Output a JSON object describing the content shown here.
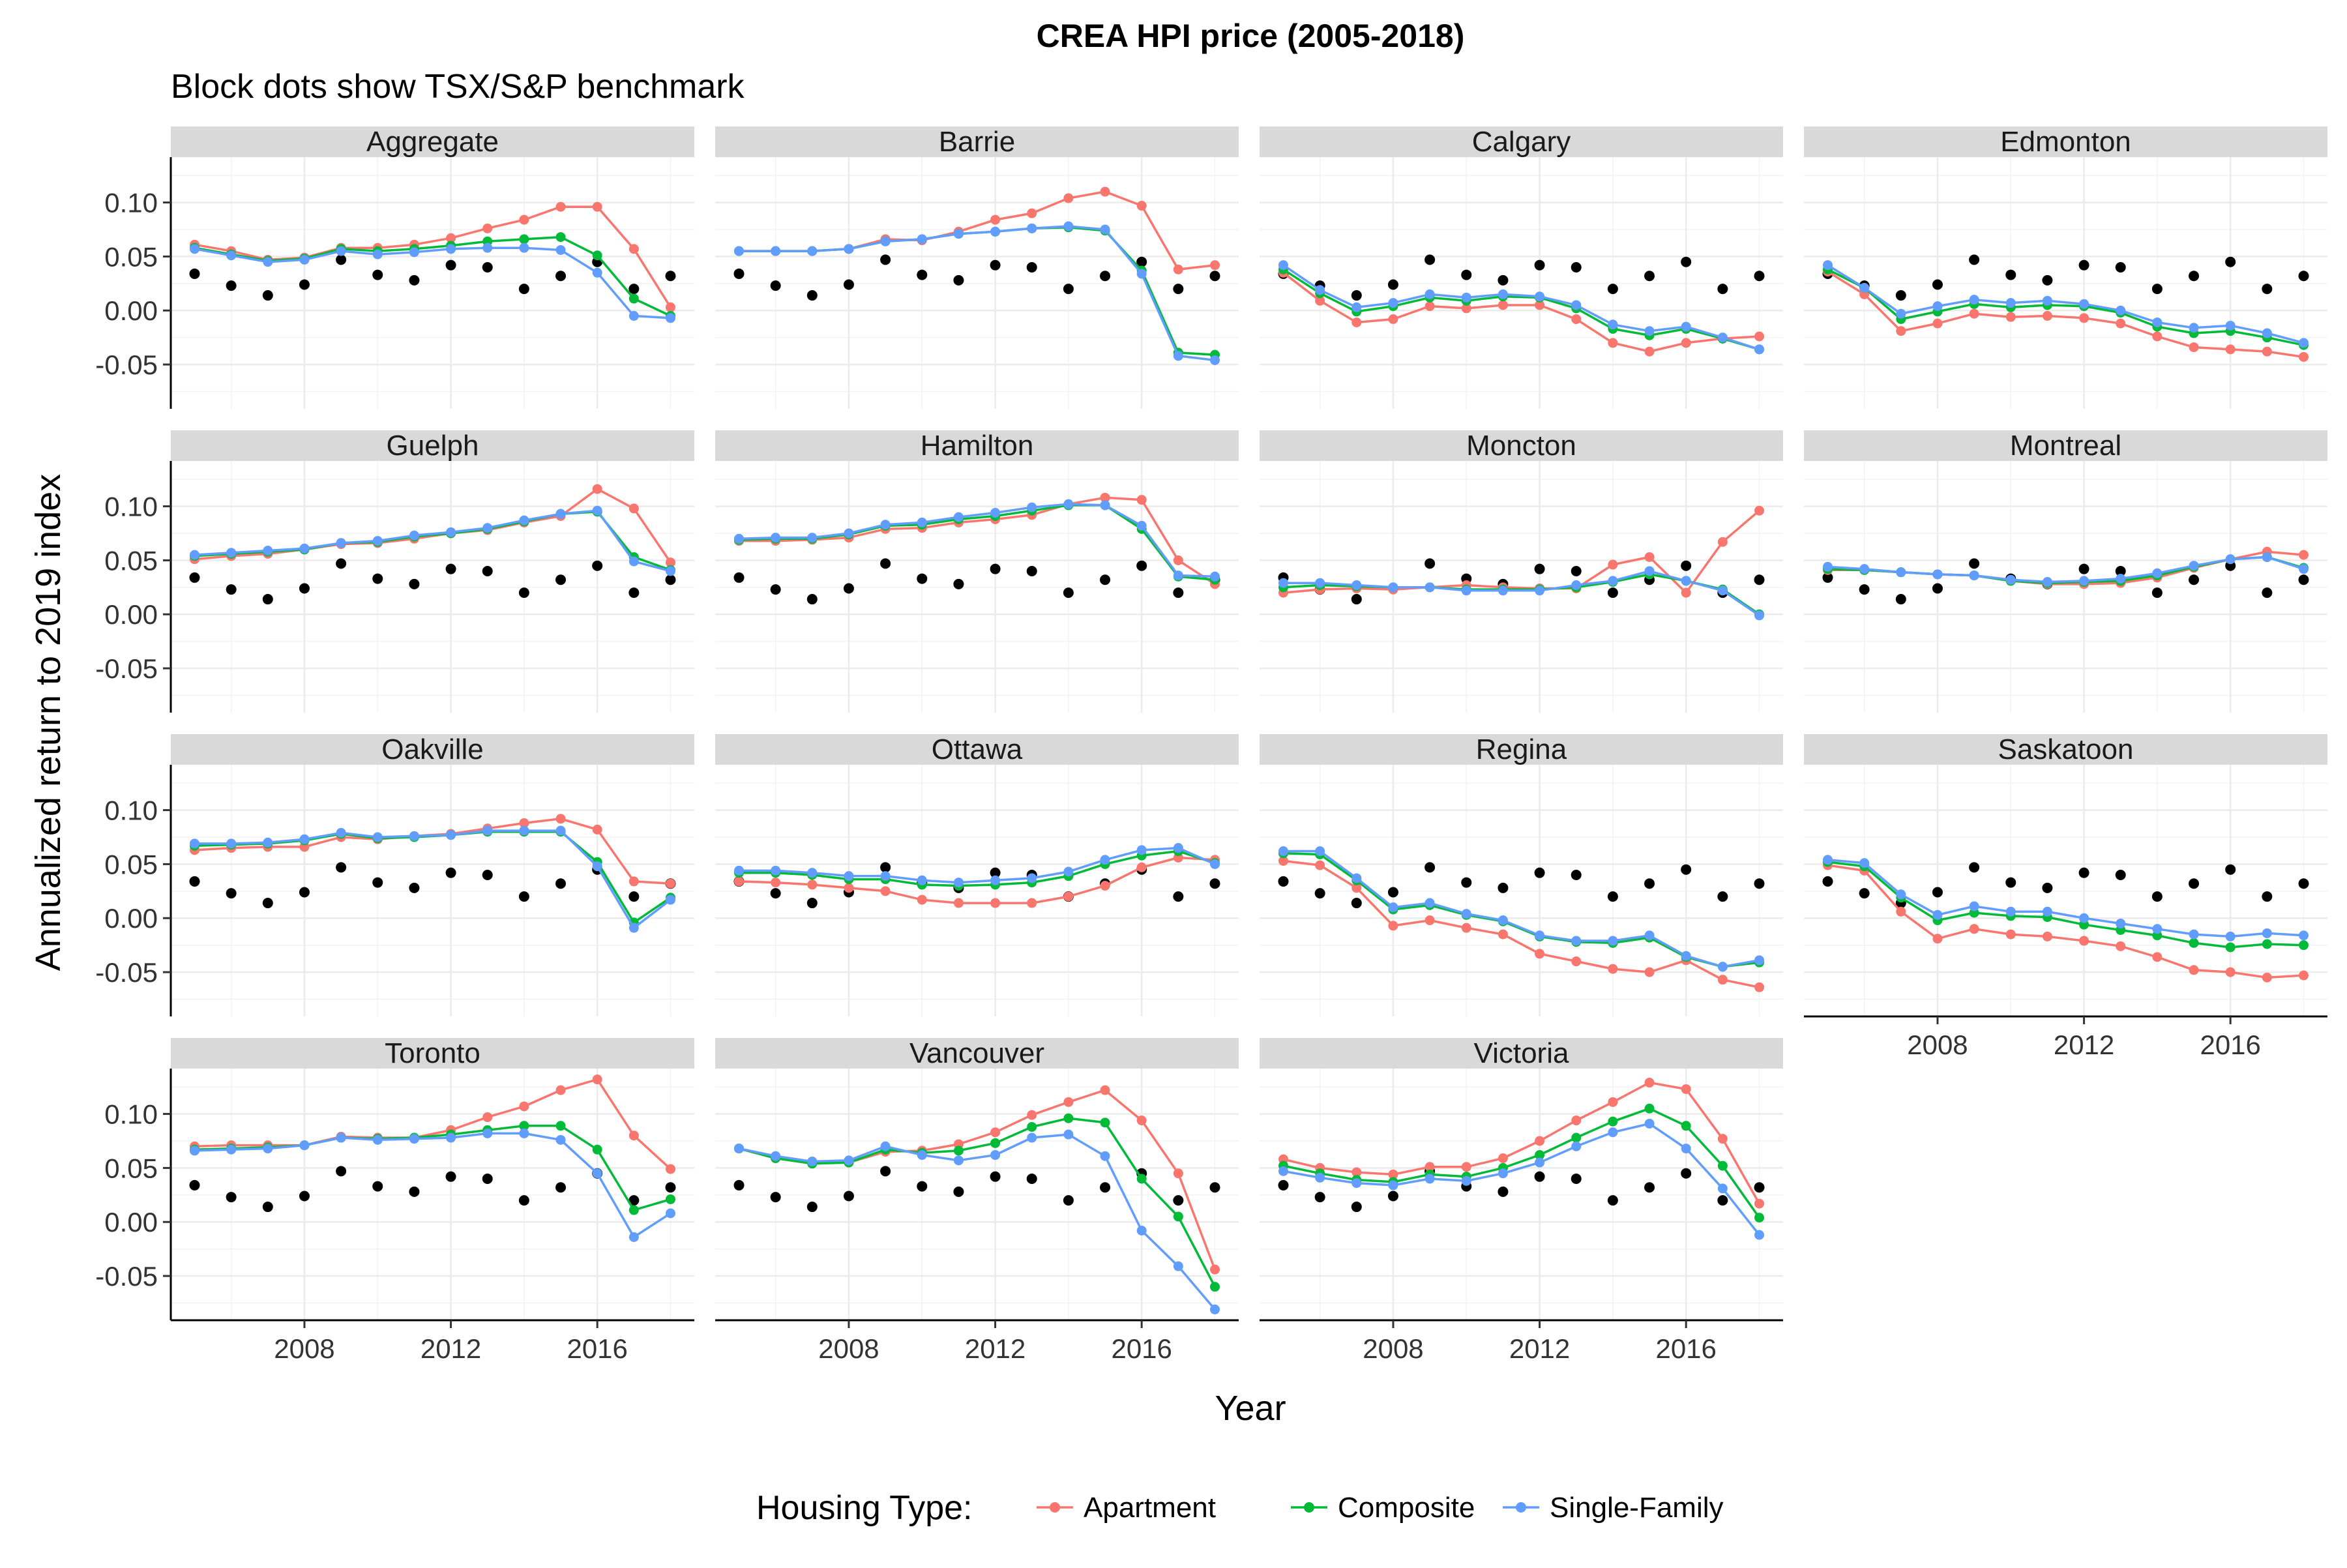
{
  "chart_data": {
    "type": "line",
    "title": "CREA HPI price (2005-2018)",
    "subtitle": "Block dots show TSX/S&P benchmark",
    "xlabel": "Year",
    "ylabel": "Annualized return to 2019 index",
    "x": [
      2005,
      2006,
      2007,
      2008,
      2009,
      2010,
      2011,
      2012,
      2013,
      2014,
      2015,
      2016,
      2017,
      2018
    ],
    "x_ticks": [
      2008,
      2012,
      2016
    ],
    "x_tick_labels": [
      "2008",
      "2012",
      "2016"
    ],
    "xlim": [
      2004.35,
      2018.65
    ],
    "y_ticks": [
      -0.05,
      0.0,
      0.05,
      0.1
    ],
    "y_tick_labels": [
      "-0.05",
      "0.00",
      "0.05",
      "0.10"
    ],
    "ylim": [
      -0.091,
      0.142
    ],
    "grid": true,
    "legend": {
      "title": "Housing Type:",
      "position": "bottom",
      "items": [
        {
          "label": "Apartment",
          "color": "#F8766D"
        },
        {
          "label": "Composite",
          "color": "#00BA38"
        },
        {
          "label": "Single-Family",
          "color": "#619CFF"
        }
      ]
    },
    "series_colors": {
      "Apartment": "#F8766D",
      "Composite": "#00BA38",
      "Single-Family": "#619CFF",
      "benchmark": "#000000"
    },
    "benchmark": [
      0.034,
      0.023,
      0.014,
      0.024,
      0.047,
      0.033,
      0.028,
      0.042,
      0.04,
      0.02,
      0.032,
      0.045,
      0.02,
      0.032
    ],
    "panels": [
      {
        "name": "Aggregate",
        "Apartment": [
          0.061,
          0.055,
          0.047,
          0.049,
          0.058,
          0.058,
          0.061,
          0.067,
          0.076,
          0.084,
          0.096,
          0.096,
          0.057,
          0.003
        ],
        "Composite": [
          0.058,
          0.052,
          0.046,
          0.048,
          0.057,
          0.055,
          0.057,
          0.06,
          0.064,
          0.066,
          0.068,
          0.051,
          0.011,
          -0.005
        ],
        "Single-Family": [
          0.057,
          0.051,
          0.045,
          0.047,
          0.055,
          0.052,
          0.054,
          0.057,
          0.058,
          0.058,
          0.056,
          0.035,
          -0.005,
          -0.007
        ]
      },
      {
        "name": "Barrie",
        "Apartment": [
          0.055,
          0.055,
          0.055,
          0.057,
          0.066,
          0.065,
          0.073,
          0.084,
          0.09,
          0.104,
          0.11,
          0.097,
          0.038,
          0.042
        ],
        "Composite": [
          0.055,
          0.055,
          0.055,
          0.057,
          0.064,
          0.066,
          0.071,
          0.073,
          0.076,
          0.077,
          0.074,
          0.037,
          -0.039,
          -0.041
        ],
        "Single-Family": [
          0.055,
          0.055,
          0.055,
          0.057,
          0.064,
          0.066,
          0.071,
          0.073,
          0.076,
          0.078,
          0.075,
          0.034,
          -0.042,
          -0.046
        ]
      },
      {
        "name": "Calgary",
        "Apartment": [
          0.035,
          0.009,
          -0.011,
          -0.008,
          0.004,
          0.002,
          0.005,
          0.005,
          -0.008,
          -0.03,
          -0.038,
          -0.03,
          -0.026,
          -0.024
        ],
        "Composite": [
          0.038,
          0.016,
          -0.001,
          0.004,
          0.012,
          0.009,
          0.013,
          0.012,
          0.002,
          -0.017,
          -0.023,
          -0.017,
          -0.026,
          -0.036
        ],
        "Single-Family": [
          0.042,
          0.019,
          0.003,
          0.007,
          0.015,
          0.012,
          0.015,
          0.013,
          0.005,
          -0.013,
          -0.019,
          -0.015,
          -0.025,
          -0.036
        ]
      },
      {
        "name": "Edmonton",
        "Apartment": [
          0.036,
          0.015,
          -0.019,
          -0.012,
          -0.003,
          -0.006,
          -0.005,
          -0.007,
          -0.012,
          -0.024,
          -0.034,
          -0.036,
          -0.038,
          -0.043
        ],
        "Composite": [
          0.038,
          0.021,
          -0.008,
          -0.001,
          0.006,
          0.003,
          0.005,
          0.004,
          -0.002,
          -0.015,
          -0.021,
          -0.019,
          -0.025,
          -0.032
        ],
        "Single-Family": [
          0.042,
          0.021,
          -0.003,
          0.004,
          0.01,
          0.007,
          0.009,
          0.006,
          0.0,
          -0.011,
          -0.016,
          -0.014,
          -0.021,
          -0.03
        ]
      },
      {
        "name": "Guelph",
        "Apartment": [
          0.051,
          0.054,
          0.056,
          0.06,
          0.065,
          0.066,
          0.07,
          0.075,
          0.078,
          0.085,
          0.091,
          0.116,
          0.098,
          0.048
        ],
        "Composite": [
          0.054,
          0.056,
          0.058,
          0.06,
          0.066,
          0.067,
          0.072,
          0.075,
          0.079,
          0.086,
          0.093,
          0.095,
          0.053,
          0.041
        ],
        "Single-Family": [
          0.055,
          0.057,
          0.059,
          0.061,
          0.066,
          0.068,
          0.073,
          0.076,
          0.08,
          0.087,
          0.093,
          0.096,
          0.049,
          0.04
        ]
      },
      {
        "name": "Hamilton",
        "Apartment": [
          0.068,
          0.068,
          0.069,
          0.071,
          0.079,
          0.08,
          0.085,
          0.088,
          0.092,
          0.102,
          0.108,
          0.106,
          0.05,
          0.028
        ],
        "Composite": [
          0.069,
          0.07,
          0.07,
          0.074,
          0.082,
          0.083,
          0.088,
          0.091,
          0.096,
          0.101,
          0.101,
          0.079,
          0.035,
          0.032
        ],
        "Single-Family": [
          0.07,
          0.071,
          0.071,
          0.075,
          0.083,
          0.085,
          0.09,
          0.094,
          0.099,
          0.102,
          0.101,
          0.082,
          0.036,
          0.035
        ]
      },
      {
        "name": "Moncton",
        "Apartment": [
          0.02,
          0.023,
          0.024,
          0.023,
          0.025,
          0.027,
          0.025,
          0.024,
          0.024,
          0.046,
          0.053,
          0.02,
          0.067,
          0.096
        ],
        "Composite": [
          0.025,
          0.027,
          0.026,
          0.025,
          0.025,
          0.023,
          0.023,
          0.023,
          0.025,
          0.03,
          0.037,
          0.031,
          0.023,
          0.0
        ],
        "Single-Family": [
          0.029,
          0.029,
          0.027,
          0.025,
          0.025,
          0.022,
          0.022,
          0.022,
          0.027,
          0.031,
          0.04,
          0.031,
          0.022,
          -0.001
        ]
      },
      {
        "name": "Montreal",
        "Apartment": [
          0.041,
          0.041,
          0.039,
          0.037,
          0.036,
          0.031,
          0.028,
          0.028,
          0.029,
          0.034,
          0.043,
          0.051,
          0.058,
          0.055
        ],
        "Composite": [
          0.042,
          0.041,
          0.039,
          0.037,
          0.036,
          0.031,
          0.029,
          0.03,
          0.031,
          0.036,
          0.044,
          0.051,
          0.053,
          0.043
        ],
        "Single-Family": [
          0.044,
          0.042,
          0.039,
          0.037,
          0.036,
          0.032,
          0.03,
          0.031,
          0.033,
          0.038,
          0.045,
          0.051,
          0.053,
          0.042
        ]
      },
      {
        "name": "Oakville",
        "Apartment": [
          0.063,
          0.065,
          0.066,
          0.066,
          0.075,
          0.073,
          0.076,
          0.078,
          0.083,
          0.088,
          0.092,
          0.082,
          0.034,
          0.032
        ],
        "Composite": [
          0.067,
          0.068,
          0.069,
          0.072,
          0.078,
          0.074,
          0.075,
          0.077,
          0.08,
          0.08,
          0.08,
          0.052,
          -0.004,
          0.019
        ],
        "Single-Family": [
          0.069,
          0.069,
          0.07,
          0.073,
          0.079,
          0.075,
          0.076,
          0.077,
          0.081,
          0.081,
          0.081,
          0.048,
          -0.009,
          0.017
        ]
      },
      {
        "name": "Ottawa",
        "Apartment": [
          0.034,
          0.033,
          0.031,
          0.028,
          0.025,
          0.017,
          0.014,
          0.014,
          0.014,
          0.02,
          0.03,
          0.047,
          0.056,
          0.054
        ],
        "Composite": [
          0.042,
          0.042,
          0.04,
          0.036,
          0.036,
          0.031,
          0.03,
          0.031,
          0.033,
          0.039,
          0.05,
          0.058,
          0.062,
          0.051
        ],
        "Single-Family": [
          0.044,
          0.044,
          0.042,
          0.039,
          0.039,
          0.035,
          0.033,
          0.035,
          0.037,
          0.043,
          0.054,
          0.063,
          0.065,
          0.05
        ]
      },
      {
        "name": "Regina",
        "Apartment": [
          0.053,
          0.049,
          0.028,
          -0.007,
          -0.002,
          -0.009,
          -0.015,
          -0.033,
          -0.04,
          -0.047,
          -0.05,
          -0.039,
          -0.057,
          -0.064
        ],
        "Composite": [
          0.06,
          0.059,
          0.035,
          0.008,
          0.012,
          0.003,
          -0.003,
          -0.017,
          -0.022,
          -0.023,
          -0.018,
          -0.036,
          -0.045,
          -0.041
        ],
        "Single-Family": [
          0.062,
          0.062,
          0.037,
          0.01,
          0.014,
          0.004,
          -0.002,
          -0.016,
          -0.021,
          -0.021,
          -0.016,
          -0.035,
          -0.045,
          -0.039
        ]
      },
      {
        "name": "Saskatoon",
        "Apartment": [
          0.049,
          0.044,
          0.006,
          -0.019,
          -0.01,
          -0.015,
          -0.017,
          -0.021,
          -0.026,
          -0.036,
          -0.048,
          -0.05,
          -0.055,
          -0.053
        ],
        "Composite": [
          0.052,
          0.048,
          0.019,
          -0.002,
          0.005,
          0.002,
          0.001,
          -0.006,
          -0.011,
          -0.016,
          -0.023,
          -0.027,
          -0.024,
          -0.025
        ],
        "Single-Family": [
          0.054,
          0.051,
          0.022,
          0.003,
          0.011,
          0.006,
          0.006,
          0.0,
          -0.005,
          -0.01,
          -0.015,
          -0.017,
          -0.014,
          -0.016
        ]
      },
      {
        "name": "Toronto",
        "Apartment": [
          0.07,
          0.071,
          0.071,
          0.071,
          0.079,
          0.078,
          0.078,
          0.085,
          0.097,
          0.107,
          0.122,
          0.132,
          0.08,
          0.049
        ],
        "Composite": [
          0.067,
          0.068,
          0.069,
          0.071,
          0.078,
          0.077,
          0.078,
          0.081,
          0.085,
          0.089,
          0.089,
          0.067,
          0.011,
          0.021
        ],
        "Single-Family": [
          0.066,
          0.067,
          0.068,
          0.071,
          0.078,
          0.076,
          0.077,
          0.078,
          0.082,
          0.082,
          0.076,
          0.045,
          -0.014,
          0.008
        ]
      },
      {
        "name": "Vancouver",
        "Apartment": [
          0.068,
          0.059,
          0.055,
          0.055,
          0.065,
          0.066,
          0.072,
          0.083,
          0.099,
          0.111,
          0.122,
          0.094,
          0.045,
          -0.044
        ],
        "Composite": [
          0.068,
          0.059,
          0.054,
          0.055,
          0.067,
          0.064,
          0.066,
          0.073,
          0.088,
          0.096,
          0.092,
          0.04,
          0.005,
          -0.06
        ],
        "Single-Family": [
          0.068,
          0.061,
          0.056,
          0.057,
          0.07,
          0.062,
          0.057,
          0.062,
          0.078,
          0.081,
          0.061,
          -0.008,
          -0.041,
          -0.081
        ]
      },
      {
        "name": "Victoria",
        "Apartment": [
          0.058,
          0.05,
          0.046,
          0.044,
          0.051,
          0.051,
          0.059,
          0.075,
          0.094,
          0.111,
          0.129,
          0.123,
          0.077,
          0.017
        ],
        "Composite": [
          0.052,
          0.045,
          0.039,
          0.037,
          0.044,
          0.042,
          0.05,
          0.062,
          0.078,
          0.093,
          0.105,
          0.089,
          0.052,
          0.004
        ],
        "Single-Family": [
          0.047,
          0.041,
          0.036,
          0.034,
          0.04,
          0.038,
          0.045,
          0.055,
          0.07,
          0.083,
          0.091,
          0.068,
          0.031,
          -0.012
        ]
      }
    ]
  }
}
